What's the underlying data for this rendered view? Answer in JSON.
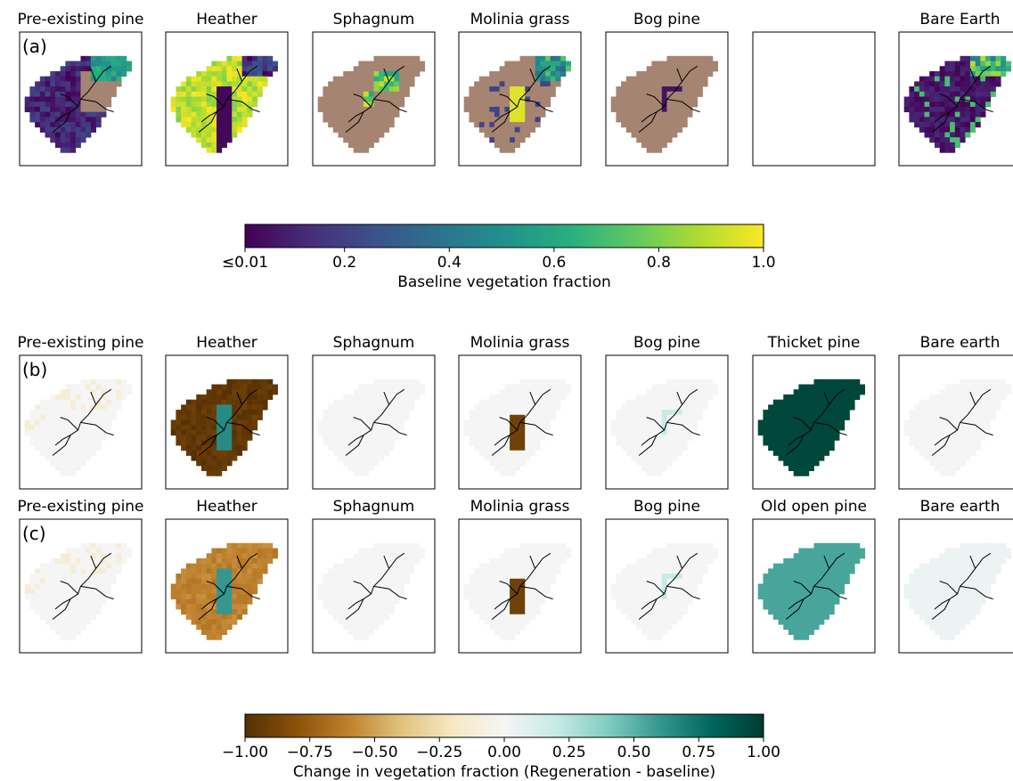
{
  "chart_data": [
    {
      "type": "heatmap",
      "row_label": "(a)",
      "panels": [
        {
          "title": "Pre-existing pine",
          "variable": "pre-existing-pine"
        },
        {
          "title": "Heather",
          "variable": "heather"
        },
        {
          "title": "Sphagnum",
          "variable": "sphagnum"
        },
        {
          "title": "Molinia grass",
          "variable": "molinia"
        },
        {
          "title": "Bog pine",
          "variable": "bog-pine"
        },
        {
          "title": "",
          "variable": "empty"
        },
        {
          "title": "Bare Earth",
          "variable": "bare-earth"
        }
      ],
      "colorbar": {
        "label": "Baseline vegetation fraction",
        "colormap": "viridis",
        "range": [
          0.01,
          1.0
        ],
        "ticks": [
          "≤0.01",
          "0.2",
          "0.4",
          "0.6",
          "0.8",
          "1.0"
        ],
        "tick_values": [
          0.01,
          0.2,
          0.4,
          0.6,
          0.8,
          1.0
        ]
      },
      "masked_color": "#a68472"
    },
    {
      "type": "heatmap",
      "row_label": "(b)",
      "panels": [
        {
          "title": "Pre-existing pine",
          "variable": "pre-existing-pine"
        },
        {
          "title": "Heather",
          "variable": "heather"
        },
        {
          "title": "Sphagnum",
          "variable": "sphagnum"
        },
        {
          "title": "Molinia grass",
          "variable": "molinia"
        },
        {
          "title": "Bog pine",
          "variable": "bog-pine"
        },
        {
          "title": "Thicket pine",
          "variable": "thicket-pine"
        },
        {
          "title": "Bare earth",
          "variable": "bare-earth"
        }
      ]
    },
    {
      "type": "heatmap",
      "row_label": "(c)",
      "panels": [
        {
          "title": "Pre-existing pine",
          "variable": "pre-existing-pine"
        },
        {
          "title": "Heather",
          "variable": "heather"
        },
        {
          "title": "Sphagnum",
          "variable": "sphagnum"
        },
        {
          "title": "Molinia grass",
          "variable": "molinia"
        },
        {
          "title": "Bog pine",
          "variable": "bog-pine"
        },
        {
          "title": "Old open pine",
          "variable": "old-open-pine"
        },
        {
          "title": "Bare earth",
          "variable": "bare-earth"
        }
      ],
      "colorbar": {
        "label": "Change in vegetation fraction (Regeneration - baseline)",
        "colormap": "BrBG",
        "range": [
          -1.0,
          1.0
        ],
        "ticks": [
          "−1.00",
          "−0.75",
          "−0.50",
          "−0.25",
          "0.00",
          "0.25",
          "0.50",
          "0.75",
          "1.00"
        ],
        "tick_values": [
          -1,
          -0.75,
          -0.5,
          -0.25,
          0,
          0.25,
          0.5,
          0.75,
          1
        ]
      }
    }
  ]
}
